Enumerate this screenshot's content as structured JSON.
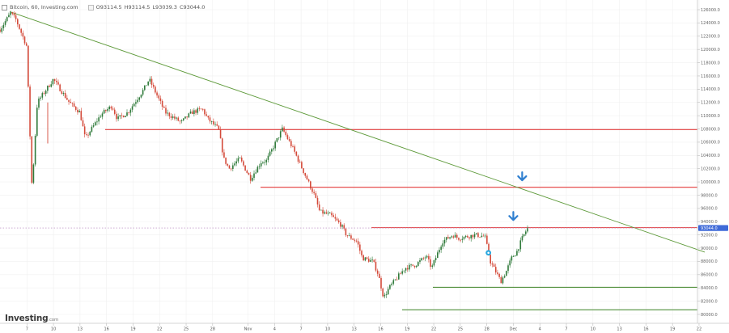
{
  "header": {
    "symbol": "Bitcoin, 60, Investing.com",
    "open": "O93114.5",
    "high": "H93114.5",
    "low": "L93039.3",
    "close": "C93044.0"
  },
  "brand": {
    "name": "Investing",
    "suffix": ".com"
  },
  "colors": {
    "resistance": "#e23c3c",
    "support": "#4f8f3a",
    "trendline": "#5e9a3a",
    "candle_up": "#2f7a3a",
    "candle_down": "#d44a3a",
    "arrow": "#2f7fd0",
    "marker": "#2aa8e0",
    "price_line": "#b07ab8",
    "price_label_bg": "#3f6ad8"
  },
  "chart_data": {
    "type": "candlestick",
    "y_ticks": [
      "126000.0",
      "124000.0",
      "122000.0",
      "120000.0",
      "118000.0",
      "116000.0",
      "114000.0",
      "112000.0",
      "110000.0",
      "108000.0",
      "106000.0",
      "104000.0",
      "102000.0",
      "100000.0",
      "98000.0",
      "96000.0",
      "94000.0",
      "92000.0",
      "90000.0",
      "88000.0",
      "86000.0",
      "84000.0",
      "82000.0",
      "80000.0"
    ],
    "x_ticks": [
      "7",
      "10",
      "13",
      "16",
      "19",
      "22",
      "25",
      "28",
      "Nov",
      "4",
      "7",
      "10",
      "13",
      "16",
      "19",
      "22",
      "25",
      "28",
      "Dec",
      "4",
      "7",
      "10",
      "13",
      "16",
      "19",
      "22"
    ],
    "current_price_label": "93044.0",
    "current_price": 93044,
    "horizontal_levels": [
      {
        "kind": "resistance",
        "price": 107900
      },
      {
        "kind": "resistance",
        "price": 99200
      },
      {
        "kind": "resistance",
        "price": 93100
      },
      {
        "kind": "support",
        "price": 84100
      },
      {
        "kind": "support",
        "price": 80700
      }
    ],
    "trendline": {
      "from": {
        "x": "4 Oct",
        "price": 125700
      },
      "to": {
        "x": "24 Dec",
        "price": 89400
      }
    },
    "price_path": [
      [
        0,
        123000
      ],
      [
        2,
        125500
      ],
      [
        3,
        124500
      ],
      [
        5,
        120500
      ],
      [
        6,
        99000
      ],
      [
        7,
        112000
      ],
      [
        10,
        115500
      ],
      [
        13,
        112000
      ],
      [
        15,
        110500
      ],
      [
        16,
        106500
      ],
      [
        17,
        107800
      ],
      [
        19,
        110200
      ],
      [
        21,
        111500
      ],
      [
        22,
        109500
      ],
      [
        24,
        110500
      ],
      [
        27,
        114000
      ],
      [
        28,
        115500
      ],
      [
        31,
        110500
      ],
      [
        34,
        109000
      ],
      [
        36,
        110500
      ],
      [
        38,
        111000
      ],
      [
        39,
        109500
      ],
      [
        41,
        108000
      ],
      [
        42,
        103500
      ],
      [
        43,
        102000
      ],
      [
        45,
        103500
      ],
      [
        47,
        100500
      ],
      [
        49,
        103000
      ],
      [
        50,
        103200
      ],
      [
        53,
        108000
      ],
      [
        55,
        105000
      ],
      [
        57,
        101500
      ],
      [
        59,
        98000
      ],
      [
        60,
        95500
      ],
      [
        62,
        95000
      ],
      [
        64,
        93500
      ],
      [
        65,
        92000
      ],
      [
        67,
        91000
      ],
      [
        68,
        88500
      ],
      [
        70,
        88000
      ],
      [
        71,
        86000
      ],
      [
        72,
        82500
      ],
      [
        73,
        84000
      ],
      [
        75,
        86000
      ],
      [
        76,
        87000
      ],
      [
        78,
        87500
      ],
      [
        80,
        88800
      ],
      [
        81,
        87000
      ],
      [
        83,
        91000
      ],
      [
        85,
        92000
      ],
      [
        86,
        91500
      ],
      [
        88,
        91800
      ],
      [
        89,
        92000
      ],
      [
        91,
        91800
      ],
      [
        92,
        88000
      ],
      [
        93,
        86500
      ],
      [
        94,
        85000
      ],
      [
        95,
        86500
      ],
      [
        96,
        88500
      ],
      [
        97,
        89500
      ],
      [
        98,
        91500
      ],
      [
        99,
        93044
      ]
    ],
    "annotations": [
      {
        "type": "arrow-down",
        "x": "5 Dec",
        "price": 100000
      },
      {
        "type": "arrow-down",
        "x": "4 Dec",
        "price": 94000
      },
      {
        "type": "marker",
        "x": "1 Dec",
        "price": 89300
      }
    ]
  }
}
